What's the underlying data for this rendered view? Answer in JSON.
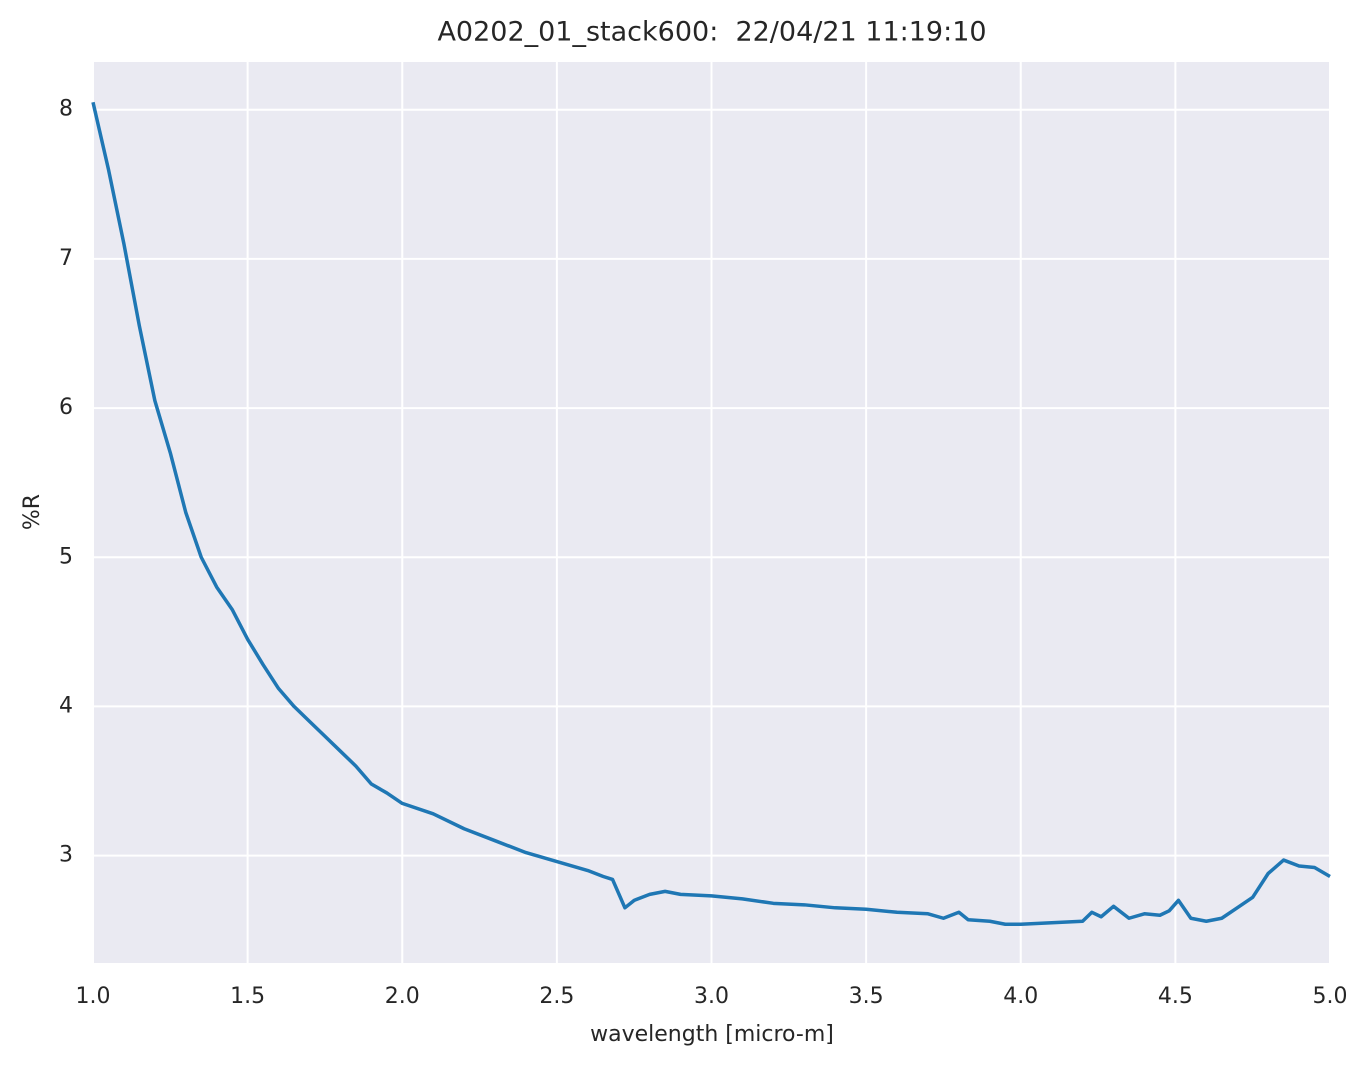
{
  "chart_data": {
    "type": "line",
    "title": "A0202_01_stack600:  22/04/21 11:19:10",
    "x_label": "wavelength [micro-m]",
    "y_label": "%R",
    "x": [
      1.0,
      1.05,
      1.1,
      1.15,
      1.2,
      1.25,
      1.3,
      1.35,
      1.4,
      1.45,
      1.5,
      1.55,
      1.6,
      1.65,
      1.7,
      1.75,
      1.8,
      1.85,
      1.9,
      1.95,
      2.0,
      2.1,
      2.2,
      2.3,
      2.4,
      2.5,
      2.6,
      2.65,
      2.68,
      2.72,
      2.75,
      2.8,
      2.85,
      2.9,
      3.0,
      3.1,
      3.2,
      3.3,
      3.4,
      3.5,
      3.6,
      3.7,
      3.75,
      3.8,
      3.83,
      3.9,
      3.95,
      4.0,
      4.1,
      4.2,
      4.23,
      4.26,
      4.3,
      4.35,
      4.4,
      4.45,
      4.48,
      4.51,
      4.55,
      4.6,
      4.65,
      4.7,
      4.75,
      4.8,
      4.85,
      4.9,
      4.95,
      5.0
    ],
    "values": [
      8.05,
      7.6,
      7.1,
      6.55,
      6.05,
      5.7,
      5.3,
      5.0,
      4.8,
      4.65,
      4.45,
      4.28,
      4.12,
      4.0,
      3.9,
      3.8,
      3.7,
      3.6,
      3.48,
      3.42,
      3.35,
      3.28,
      3.18,
      3.1,
      3.02,
      2.96,
      2.9,
      2.86,
      2.84,
      2.65,
      2.7,
      2.74,
      2.76,
      2.74,
      2.73,
      2.71,
      2.68,
      2.67,
      2.65,
      2.64,
      2.62,
      2.61,
      2.58,
      2.62,
      2.57,
      2.56,
      2.54,
      2.54,
      2.55,
      2.56,
      2.62,
      2.59,
      2.66,
      2.58,
      2.61,
      2.6,
      2.63,
      2.7,
      2.58,
      2.56,
      2.58,
      2.65,
      2.72,
      2.88,
      2.97,
      2.93,
      2.92,
      2.86
    ],
    "color": "#1f77b4",
    "xlim": [
      1.0,
      5.0
    ],
    "ylim": [
      2.28,
      8.32
    ],
    "xticks": [
      {
        "value": 1.0,
        "label": "1.0"
      },
      1.5,
      {
        "value": 2.0,
        "label": "2.0"
      },
      2.5,
      {
        "value": 3.0,
        "label": "3.0"
      },
      3.5,
      {
        "value": 4.0,
        "label": "4.0"
      },
      4.5,
      {
        "value": 5.0,
        "label": "5.0"
      }
    ],
    "yticks": [
      3,
      4,
      5,
      6,
      7,
      8
    ],
    "grid": true
  }
}
